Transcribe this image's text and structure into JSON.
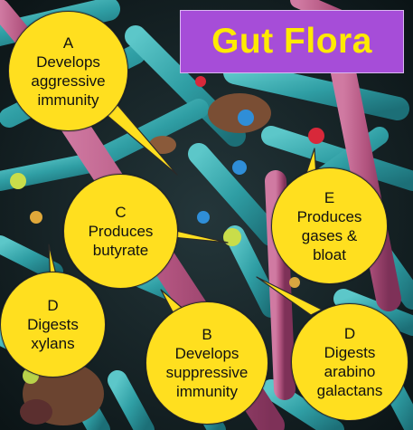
{
  "title": "Gut Flora",
  "bubbles": {
    "a": {
      "letter": "A",
      "lines": [
        "Develops",
        "aggressive",
        "immunity"
      ]
    },
    "c": {
      "letter": "C",
      "lines": [
        "Produces",
        "butyrate"
      ]
    },
    "e": {
      "letter": "E",
      "lines": [
        "Produces",
        "gases &",
        "bloat"
      ]
    },
    "d1": {
      "letter": "D",
      "lines": [
        "Digests",
        "xylans"
      ]
    },
    "b": {
      "letter": "B",
      "lines": [
        "Develops",
        "suppressive",
        "immunity"
      ]
    },
    "d2": {
      "letter": "D",
      "lines": [
        "Digests",
        "arabino",
        "galactans"
      ]
    }
  },
  "colors": {
    "bubble_fill": "#ffdf1f",
    "title_bg": "#a64dd8",
    "title_text": "#ffea00",
    "bacteria_teal": "#2f9ea4",
    "bacteria_pink": "#b2547f"
  }
}
